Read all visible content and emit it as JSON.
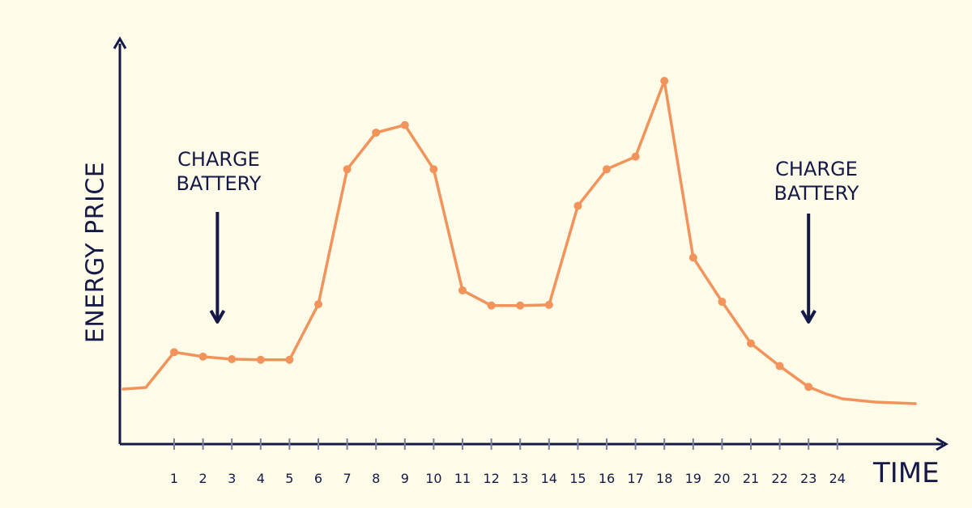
{
  "chart_data": {
    "type": "line",
    "ylabel": "ENERGY PRICE",
    "xlabel": "TIME",
    "x_ticks": [
      "1",
      "2",
      "3",
      "4",
      "5",
      "6",
      "7",
      "8",
      "9",
      "10",
      "11",
      "12",
      "13",
      "14",
      "15",
      "16",
      "17",
      "18",
      "19",
      "20",
      "21",
      "22",
      "23",
      "24"
    ],
    "series": [
      {
        "color": "#F2935C",
        "points": [
          [
            1,
            7
          ],
          [
            2,
            6.3
          ],
          [
            3,
            5.9
          ],
          [
            4,
            5.8
          ],
          [
            5,
            5.8
          ],
          [
            6,
            14.6
          ],
          [
            7,
            36
          ],
          [
            8,
            41.8
          ],
          [
            9,
            43
          ],
          [
            10,
            36
          ],
          [
            11,
            16.8
          ],
          [
            12,
            14.4
          ],
          [
            13,
            14.4
          ],
          [
            14,
            14.5
          ],
          [
            15,
            30.2
          ],
          [
            16,
            36
          ],
          [
            17,
            38
          ],
          [
            18,
            50
          ],
          [
            19,
            22
          ],
          [
            20,
            15
          ],
          [
            21,
            8.4
          ],
          [
            22,
            4.8
          ],
          [
            23,
            1.5
          ]
        ],
        "tail_start": 0,
        "tail_end": -1,
        "marker_color": "#F2935C"
      }
    ],
    "grid": false,
    "axis_color": "#151947"
  },
  "annotations": [
    {
      "text_line1": "CHARGE",
      "text_line2": "BATTERY",
      "points_to_x": 2.5
    },
    {
      "text_line1": "CHARGE",
      "text_line2": "BATTERY",
      "points_to_x": 23
    }
  ]
}
